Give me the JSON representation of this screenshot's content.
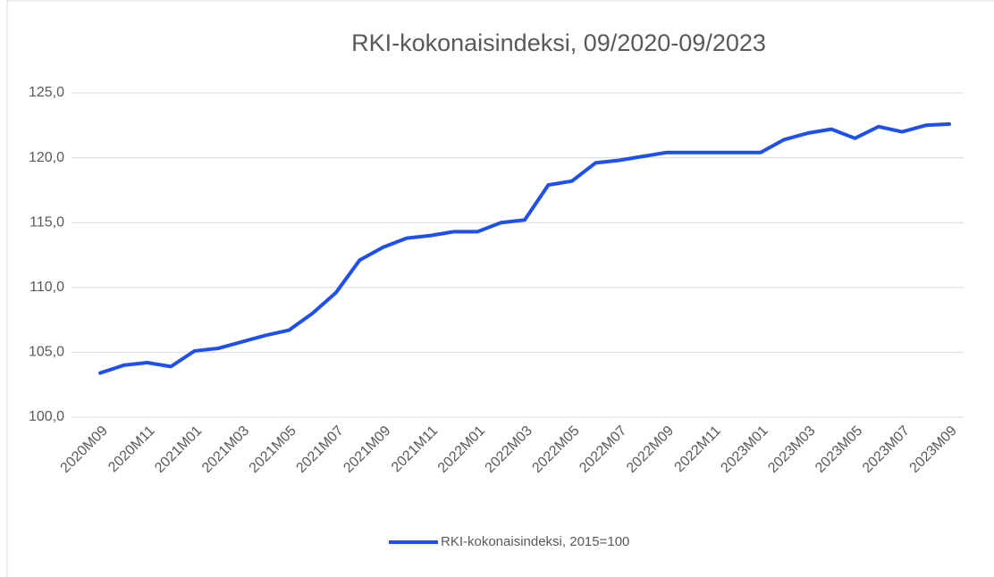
{
  "chart_data": {
    "type": "line",
    "title": "RKI-kokonaisindeksi, 09/2020-09/2023",
    "categories": [
      "2020M09",
      null,
      "2020M11",
      null,
      "2021M01",
      null,
      "2021M03",
      null,
      "2021M05",
      null,
      "2021M07",
      null,
      "2021M09",
      null,
      "2021M11",
      null,
      "2022M01",
      null,
      "2022M03",
      null,
      "2022M05",
      null,
      "2022M07",
      null,
      "2022M09",
      null,
      "2022M11",
      null,
      "2023M01",
      null,
      "2023M03",
      null,
      "2023M05",
      null,
      "2023M07",
      null,
      "2023M09"
    ],
    "series": [
      {
        "name": "RKI-kokonaisindeksi, 2015=100",
        "color": "#1f50ee",
        "values": [
          103.4,
          104.0,
          104.2,
          103.9,
          105.1,
          105.3,
          105.8,
          106.3,
          106.7,
          108.0,
          109.6,
          112.1,
          113.1,
          113.8,
          114.0,
          114.3,
          114.3,
          115.0,
          115.2,
          117.9,
          118.2,
          119.6,
          119.8,
          120.1,
          120.4,
          120.4,
          120.4,
          120.4,
          120.4,
          121.4,
          121.9,
          122.2,
          121.5,
          122.4,
          122.0,
          122.5,
          122.6
        ]
      }
    ],
    "ylim": [
      100,
      125
    ],
    "yticks": [
      {
        "value": 100,
        "label": "100,0"
      },
      {
        "value": 105,
        "label": "105,0"
      },
      {
        "value": 110,
        "label": "110,0"
      },
      {
        "value": 115,
        "label": "115,0"
      },
      {
        "value": 120,
        "label": "120,0"
      },
      {
        "value": 125,
        "label": "125,0"
      }
    ],
    "grid": true,
    "legend": "bottom"
  }
}
